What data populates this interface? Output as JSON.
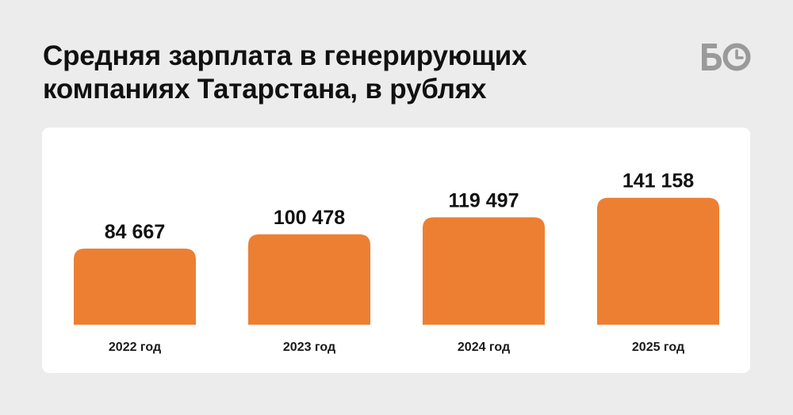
{
  "header": {
    "title_line1": "Средняя зарплата в генерирующих",
    "title_line2": "компаниях Татарстана, в рублях",
    "logo_icon": "bo-logo-icon"
  },
  "colors": {
    "bar": "#ED7F33",
    "background": "#ECECEC",
    "card": "#FFFFFF",
    "logo": "#9A9A9A"
  },
  "chart_data": {
    "type": "bar",
    "categories": [
      "2022 год",
      "2023 год",
      "2024 год",
      "2025 год"
    ],
    "values": [
      84667,
      100478,
      119497,
      141158
    ],
    "value_labels": [
      "84 667",
      "100 478",
      "119 497",
      "141 158"
    ],
    "title": "Средняя зарплата в генерирующих компаниях Татарстана, в рублях",
    "xlabel": "",
    "ylabel": "",
    "ylim": [
      0,
      170000
    ],
    "grid": false,
    "legend": "none"
  }
}
